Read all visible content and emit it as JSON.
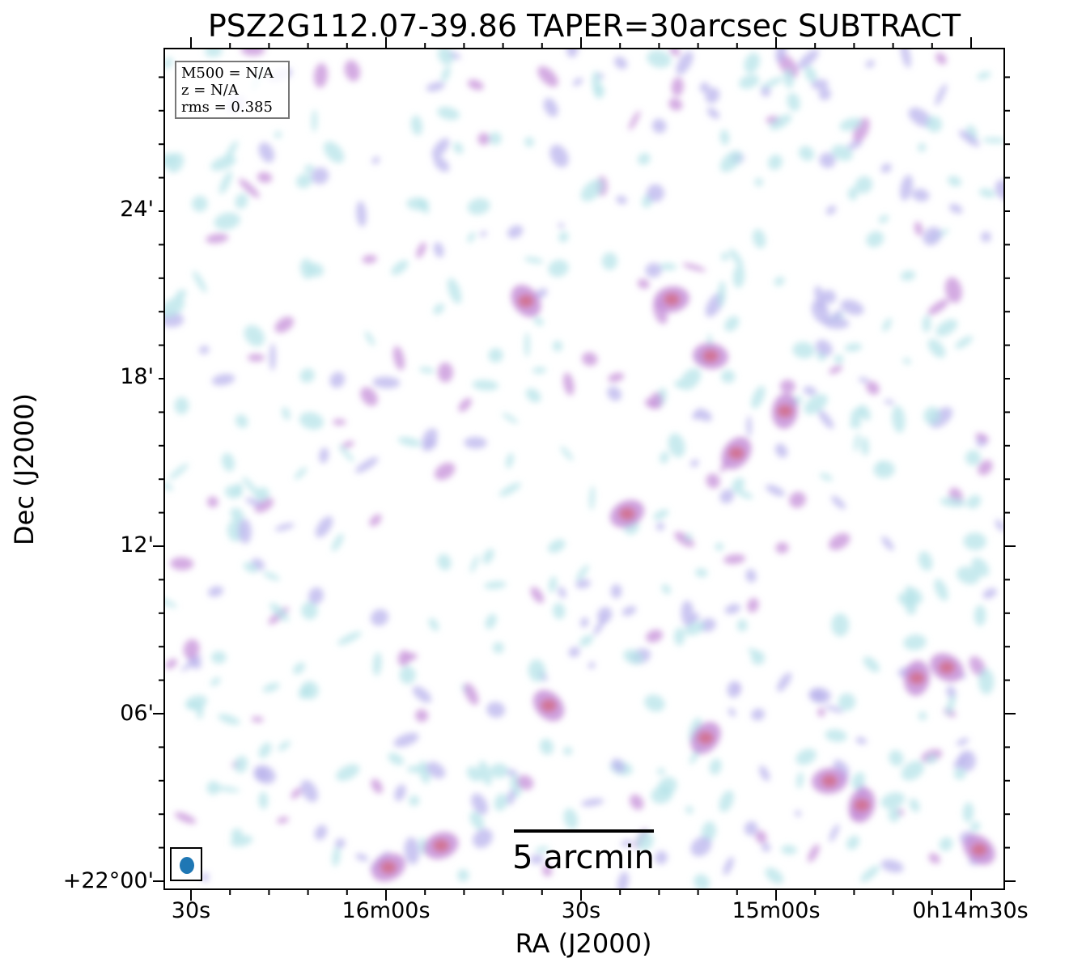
{
  "title": "PSZ2G112.07-39.86 TAPER=30arcsec SUBTRACT",
  "xlabel": "RA (J2000)",
  "ylabel": "Dec (J2000)",
  "x_ticks": [
    "30s",
    "16m00s",
    "30s",
    "15m00s",
    "0h14m30s"
  ],
  "y_ticks": [
    "24'",
    "18'",
    "12'",
    "06'",
    "+22°00'"
  ],
  "info": {
    "m500": "M500 = N/A",
    "z": "z = N/A",
    "rms": "rms = 0.385"
  },
  "scalebar": {
    "label": "5 arcmin"
  },
  "colors": {
    "faint": "#b5e3e8",
    "medium": "#b9b3ec",
    "strong": "#c58fd8",
    "peak": "#d2708f",
    "beam": "#1f77b4"
  }
}
